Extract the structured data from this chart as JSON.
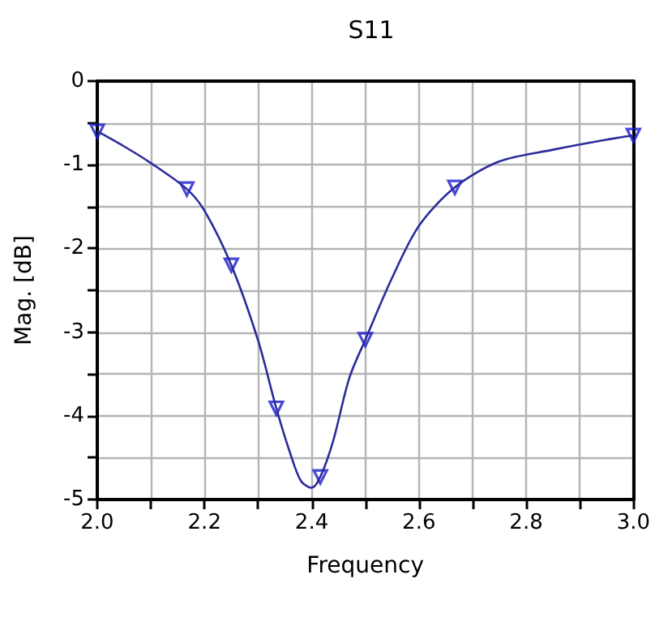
{
  "chart_data": {
    "type": "line",
    "title": "S11",
    "xlabel": "Frequency",
    "ylabel": "Mag. [dB]",
    "xlim": [
      2.0,
      3.0
    ],
    "xticks": [
      {
        "value": 2.0,
        "label": "2.0"
      },
      {
        "value": 2.2,
        "label": "2.2"
      },
      {
        "value": 2.4,
        "label": "2.4"
      },
      {
        "value": 2.6,
        "label": "2.6"
      },
      {
        "value": 2.8,
        "label": "2.8"
      },
      {
        "value": 3.0,
        "label": "3.0"
      }
    ],
    "ylim": [
      -5,
      0
    ],
    "yticks": [
      -5,
      -4,
      -3,
      -2,
      -1,
      0
    ],
    "grid": true,
    "series": [
      {
        "color": "#2b2b9c",
        "marker": "none",
        "line_style": "solid",
        "x": [
          2.0,
          2.05,
          2.1,
          2.167,
          2.2,
          2.25,
          2.3,
          2.334,
          2.36,
          2.38,
          2.4,
          2.416,
          2.44,
          2.47,
          2.5,
          2.55,
          2.6,
          2.667,
          2.75,
          2.85,
          2.95,
          3.0
        ],
        "values": [
          -0.6,
          -0.78,
          -0.98,
          -1.29,
          -1.55,
          -2.2,
          -3.1,
          -3.91,
          -4.45,
          -4.78,
          -4.86,
          -4.73,
          -4.3,
          -3.55,
          -3.09,
          -2.35,
          -1.73,
          -1.27,
          -0.96,
          -0.82,
          -0.7,
          -0.65
        ]
      },
      {
        "type": "scatter",
        "color": "#1a1acc",
        "marker": "triangle",
        "x": [
          2.0,
          2.167,
          2.25,
          2.334,
          2.416,
          2.5,
          2.667,
          3.0
        ],
        "values": [
          -0.6,
          -1.29,
          -2.2,
          -3.91,
          -4.73,
          -3.09,
          -1.27,
          -0.65
        ]
      }
    ]
  }
}
